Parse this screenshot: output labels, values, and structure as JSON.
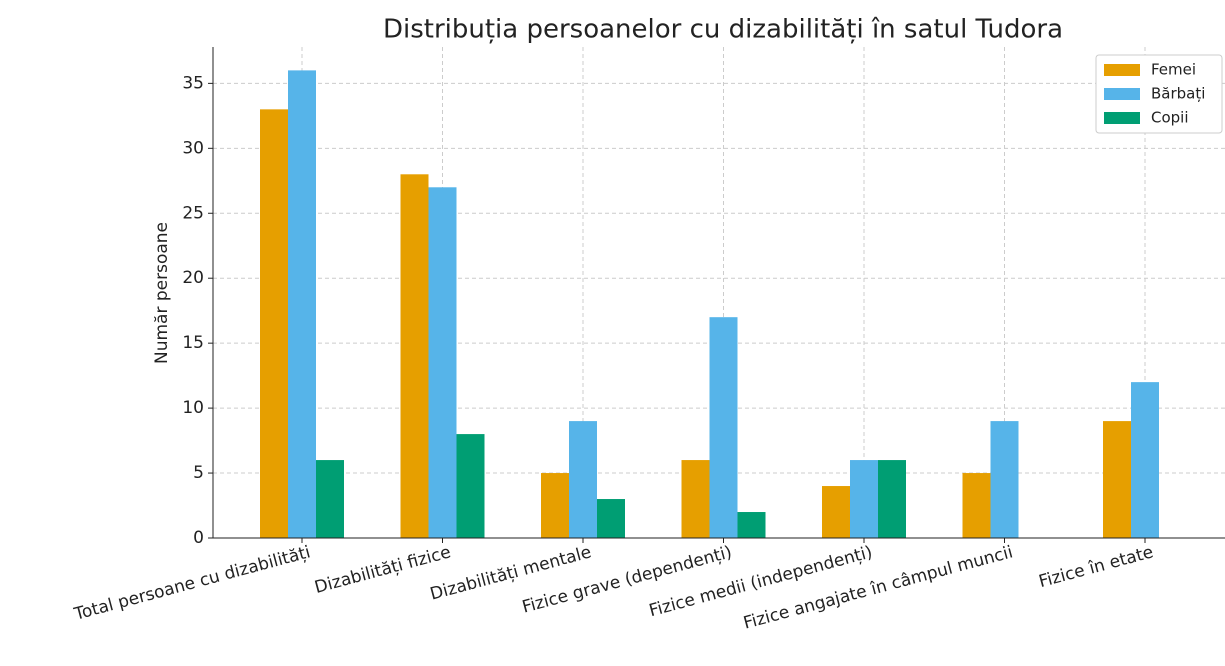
{
  "chart_data": {
    "type": "bar",
    "title": "Distribuția persoanelor cu dizabilități în satul Tudora",
    "y_label": "Număr persoane",
    "categories": [
      "Total persoane cu dizabilități",
      "Dizabilități fizice",
      "Dizabilități mentale",
      "Fizice grave (dependenți)",
      "Fizice medii (independenți)",
      "Fizice angajate în câmpul muncii",
      "Fizice în etate"
    ],
    "series": [
      {
        "name": "Femei",
        "color": "#e69f00",
        "values": [
          33,
          28,
          5,
          6,
          4,
          5,
          9
        ]
      },
      {
        "name": "Bărbați",
        "color": "#56b4e9",
        "values": [
          36,
          27,
          9,
          17,
          6,
          9,
          12
        ]
      },
      {
        "name": "Copii",
        "color": "#009e73",
        "values": [
          6,
          8,
          3,
          2,
          6,
          0,
          0
        ]
      }
    ],
    "ylim": [
      0,
      37.8
    ],
    "yticks": [
      0,
      5,
      10,
      15,
      20,
      25,
      30,
      35
    ],
    "grid": true,
    "legend": "upper right"
  }
}
